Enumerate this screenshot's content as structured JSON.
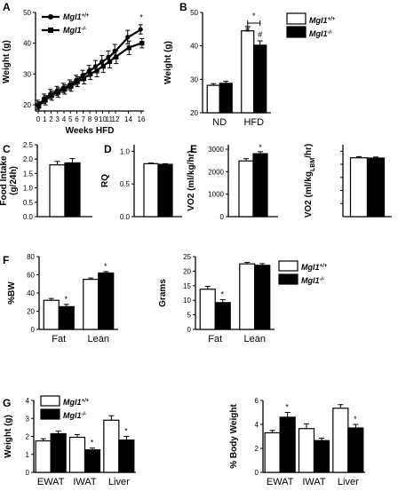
{
  "chart_data": [
    {
      "id": "A",
      "type": "line",
      "panel_label": "A",
      "xlabel": "Weeks HFD",
      "ylabel": "Weight (g)",
      "xticks": [
        "0",
        "1",
        "2",
        "3",
        "4",
        "5",
        "6",
        "7",
        "8",
        "9",
        "10",
        "11",
        "12",
        "14",
        "16"
      ],
      "yticks": [
        "20",
        "30",
        "40",
        "50"
      ],
      "ylim": [
        18,
        50
      ],
      "legend": [
        "Mgl1+/+",
        "Mgl1-/-"
      ],
      "legend_position": "top-left",
      "x": [
        0,
        1,
        2,
        3,
        4,
        5,
        6,
        7,
        8,
        9,
        10,
        11,
        12,
        14,
        16
      ],
      "series": [
        {
          "name": "Mgl1+/+",
          "values": [
            20,
            22,
            23.5,
            24.5,
            25.5,
            26.5,
            28,
            29.5,
            31,
            32.5,
            34,
            35.5,
            37.5,
            42,
            44.5
          ],
          "err": [
            1.5,
            1.5,
            1.5,
            1.5,
            1.5,
            1.6,
            1.6,
            1.7,
            1.8,
            1.9,
            2,
            2,
            2.1,
            2.2,
            1.5
          ]
        },
        {
          "name": "Mgl1-/-",
          "values": [
            19.5,
            21.5,
            23,
            24,
            25,
            26,
            27.5,
            28.5,
            30,
            31,
            32.5,
            34,
            35.5,
            38.5,
            40
          ],
          "err": [
            1.5,
            1.5,
            1.5,
            1.5,
            1.5,
            1.6,
            1.6,
            1.7,
            1.8,
            1.9,
            2,
            2,
            2.1,
            2.2,
            1.5
          ]
        }
      ],
      "annotations": [
        "*"
      ]
    },
    {
      "id": "B",
      "type": "bar",
      "panel_label": "B",
      "categories": [
        "ND",
        "HFD"
      ],
      "ylabel": "Weight (g)",
      "yticks": [
        "20",
        "30",
        "40",
        "50"
      ],
      "ylim": [
        20,
        50
      ],
      "legend": [
        "Mgl1+/+",
        "Mgl1-/-"
      ],
      "legend_position": "top-right",
      "series": [
        {
          "name": "Mgl1+/+",
          "values": [
            28.2,
            44.5
          ],
          "err": [
            0.5,
            1.3
          ]
        },
        {
          "name": "Mgl1-/-",
          "values": [
            28.8,
            40.2
          ],
          "err": [
            0.6,
            1.3
          ]
        }
      ],
      "annotations": [
        "*",
        "#",
        "#"
      ]
    },
    {
      "id": "C",
      "type": "bar",
      "panel_label": "C",
      "ylabel": "Food Intake (g/24h)",
      "yticks": [
        "0.0",
        "0.5",
        "1.0",
        "1.5",
        "2.0",
        "2.5"
      ],
      "ylim": [
        0,
        2.5
      ],
      "series": [
        {
          "name": "Mgl1+/+",
          "values": [
            1.8
          ],
          "err": [
            0.12
          ]
        },
        {
          "name": "Mgl1-/-",
          "values": [
            1.87
          ],
          "err": [
            0.15
          ]
        }
      ]
    },
    {
      "id": "D",
      "type": "bar",
      "panel_label": "D",
      "ylabel": "RQ",
      "yticks": [
        "0.0",
        "0.5",
        "1.0"
      ],
      "ylim": [
        0,
        1.1
      ],
      "series": [
        {
          "name": "Mgl1+/+",
          "values": [
            0.81
          ],
          "err": [
            0.01
          ]
        },
        {
          "name": "Mgl1-/-",
          "values": [
            0.8
          ],
          "err": [
            0.01
          ]
        }
      ]
    },
    {
      "id": "E",
      "type": "bar",
      "panel_label": "E",
      "ylabel": "VO2 (ml/kg/hr)",
      "yticks": [
        "0",
        "1000",
        "2000",
        "3000"
      ],
      "ylim": [
        0,
        3200
      ],
      "series": [
        {
          "name": "Mgl1+/+",
          "values": [
            2480
          ],
          "err": [
            100
          ]
        },
        {
          "name": "Mgl1-/-",
          "values": [
            2800
          ],
          "err": [
            90
          ]
        }
      ],
      "annotations": [
        "*"
      ]
    },
    {
      "id": "E2",
      "type": "bar",
      "ylabel": "VO2 (ml/kgLBM/hr)",
      "yticks": [],
      "ylim": [
        0,
        5500
      ],
      "series": [
        {
          "name": "Mgl1+/+",
          "values": [
            4500
          ],
          "err": [
            90
          ]
        },
        {
          "name": "Mgl1-/-",
          "values": [
            4480
          ],
          "err": [
            80
          ]
        }
      ]
    },
    {
      "id": "F1",
      "type": "bar",
      "panel_label": "F",
      "ylabel": "%BW",
      "categories": [
        "Fat",
        "Lean"
      ],
      "yticks": [
        "0",
        "20",
        "40",
        "60",
        "80"
      ],
      "ylim": [
        0,
        80
      ],
      "series": [
        {
          "name": "Mgl1+/+",
          "values": [
            32,
            55
          ],
          "err": [
            2,
            1.5
          ]
        },
        {
          "name": "Mgl1-/-",
          "values": [
            25,
            62
          ],
          "err": [
            2.5,
            1.5
          ]
        }
      ],
      "annotations": [
        "*",
        "*"
      ]
    },
    {
      "id": "F2",
      "type": "bar",
      "ylabel": "Grams",
      "categories": [
        "Fat",
        "Lean"
      ],
      "yticks": [
        "0",
        "5",
        "10",
        "15",
        "20",
        "25"
      ],
      "ylim": [
        0,
        25
      ],
      "legend": [
        "Mgl1+/+",
        "Mgl1-/-"
      ],
      "legend_position": "top-right",
      "series": [
        {
          "name": "Mgl1+/+",
          "values": [
            13.8,
            22.5
          ],
          "err": [
            1,
            0.5
          ]
        },
        {
          "name": "Mgl1-/-",
          "values": [
            9.2,
            22
          ],
          "err": [
            1,
            0.6
          ]
        }
      ],
      "annotations": [
        "*"
      ]
    },
    {
      "id": "G1",
      "type": "bar",
      "panel_label": "G",
      "ylabel": "Weight (g)",
      "categories": [
        "EWAT",
        "IWAT",
        "Liver"
      ],
      "yticks": [
        "0",
        "1",
        "2",
        "3",
        "4"
      ],
      "ylim": [
        0,
        4
      ],
      "legend": [
        "Mgl1+/+",
        "Mgl1-/-"
      ],
      "legend_position": "top-left",
      "series": [
        {
          "name": "Mgl1+/+",
          "values": [
            1.75,
            1.95,
            2.9
          ],
          "err": [
            0.12,
            0.15,
            0.25
          ]
        },
        {
          "name": "Mgl1-/-",
          "values": [
            2.15,
            1.25,
            1.8
          ],
          "err": [
            0.15,
            0.1,
            0.2
          ]
        }
      ],
      "annotations": [
        "*",
        "*"
      ]
    },
    {
      "id": "G2",
      "type": "bar",
      "ylabel": "% Body Weight",
      "categories": [
        "EWAT",
        "IWAT",
        "Liver"
      ],
      "yticks": [
        "0",
        "2",
        "4",
        "6"
      ],
      "ylim": [
        0,
        6
      ],
      "series": [
        {
          "name": "Mgl1+/+",
          "values": [
            3.3,
            3.65,
            5.35
          ],
          "err": [
            0.2,
            0.4,
            0.3
          ]
        },
        {
          "name": "Mgl1-/-",
          "values": [
            4.6,
            2.65,
            3.7
          ],
          "err": [
            0.4,
            0.2,
            0.3
          ]
        }
      ],
      "annotations": [
        "*",
        "*"
      ]
    }
  ]
}
